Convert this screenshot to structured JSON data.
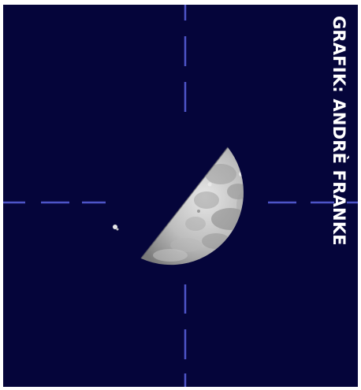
{
  "image": {
    "subject": "half-moon-with-star",
    "colors": {
      "background": "#05053a",
      "crosshair": "#4e55c8",
      "moon_light": "#d8d8d8",
      "moon_dark": "#8a8a8a",
      "credit_text": "#ffffff"
    }
  },
  "credit": {
    "text": "GRAFIK: ANDRÈ FRANKE"
  }
}
